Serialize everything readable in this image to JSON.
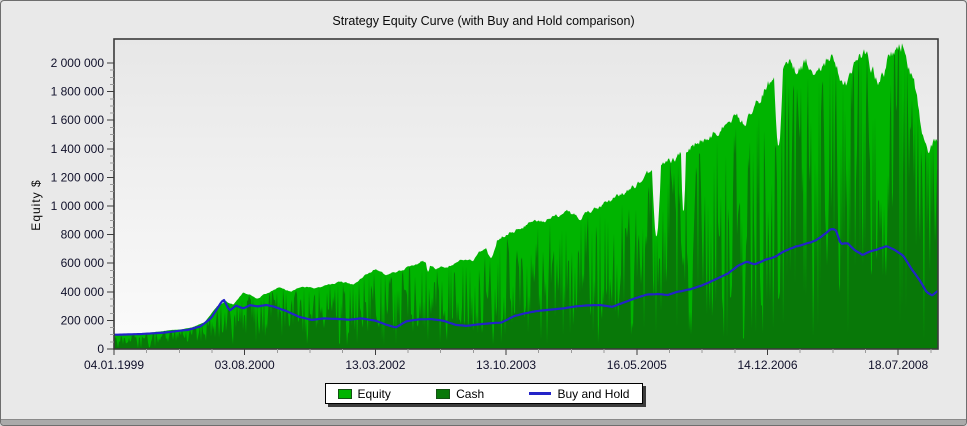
{
  "window": {
    "background_color": "#e9e9e9",
    "footer_bar_color": "#aaaaaa"
  },
  "chart_data": {
    "type": "area",
    "title": "Strategy Equity Curve (with Buy and Hold comparison)",
    "xlabel": "",
    "ylabel": "Equity $",
    "grid": false,
    "legend_position": "bottom-center",
    "plot_bg_gradient": [
      "#e7e7e7",
      "#fbfbfb"
    ],
    "plot_border_color": "#3b3b3b",
    "tick_label_color": "#10102a",
    "ylim": [
      0,
      2168000
    ],
    "y_ticks": {
      "values": [
        0,
        200000,
        400000,
        600000,
        800000,
        1000000,
        1200000,
        1400000,
        1600000,
        1800000,
        2000000
      ],
      "labels": [
        "0",
        "200 000",
        "400 000",
        "600 000",
        "800 000",
        "1 000 000",
        "1 200 000",
        "1 400 000",
        "1 600 000",
        "1 800 000",
        "2 000 000"
      ],
      "minor_step": 50000
    },
    "x_ticks": {
      "fracs": [
        0,
        0.1586,
        0.3172,
        0.4758,
        0.6345,
        0.7931,
        0.9517
      ],
      "labels": [
        "04.01.1999",
        "03.08.2000",
        "13.03.2002",
        "13.10.2003",
        "16.05.2005",
        "14.12.2006",
        "18.07.2008"
      ],
      "minors_between": 3
    },
    "noise_seed": 1337,
    "series": [
      {
        "name": "Equity",
        "type": "area",
        "color": "#00b400",
        "points": [
          [
            0.0,
            100000
          ],
          [
            0.02,
            106000
          ],
          [
            0.04,
            113000
          ],
          [
            0.06,
            126000
          ],
          [
            0.08,
            138000
          ],
          [
            0.095,
            152000
          ],
          [
            0.11,
            190000
          ],
          [
            0.125,
            295000
          ],
          [
            0.135,
            335000
          ],
          [
            0.145,
            308000
          ],
          [
            0.157,
            398000
          ],
          [
            0.17,
            368000
          ],
          [
            0.185,
            392000
          ],
          [
            0.2,
            428000
          ],
          [
            0.215,
            400000
          ],
          [
            0.23,
            438000
          ],
          [
            0.245,
            420000
          ],
          [
            0.26,
            448000
          ],
          [
            0.275,
            468000
          ],
          [
            0.29,
            450000
          ],
          [
            0.305,
            518000
          ],
          [
            0.317,
            558000
          ],
          [
            0.33,
            520000
          ],
          [
            0.345,
            538000
          ],
          [
            0.36,
            578000
          ],
          [
            0.375,
            618000
          ],
          [
            0.39,
            560000
          ],
          [
            0.405,
            580000
          ],
          [
            0.42,
            618000
          ],
          [
            0.435,
            648000
          ],
          [
            0.45,
            700000
          ],
          [
            0.465,
            758000
          ],
          [
            0.476,
            808000
          ],
          [
            0.49,
            838000
          ],
          [
            0.505,
            878000
          ],
          [
            0.52,
            898000
          ],
          [
            0.535,
            928000
          ],
          [
            0.55,
            958000
          ],
          [
            0.565,
            928000
          ],
          [
            0.58,
            978000
          ],
          [
            0.6,
            1028000
          ],
          [
            0.615,
            1078000
          ],
          [
            0.634,
            1148000
          ],
          [
            0.65,
            1228000
          ],
          [
            0.665,
            1268000
          ],
          [
            0.68,
            1328000
          ],
          [
            0.695,
            1398000
          ],
          [
            0.71,
            1448000
          ],
          [
            0.725,
            1518000
          ],
          [
            0.74,
            1578000
          ],
          [
            0.755,
            1628000
          ],
          [
            0.765,
            1548000
          ],
          [
            0.775,
            1648000
          ],
          [
            0.79,
            1818000
          ],
          [
            0.8,
            1898000
          ],
          [
            0.81,
            1958000
          ],
          [
            0.82,
            1998000
          ],
          [
            0.83,
            1928000
          ],
          [
            0.84,
            1988000
          ],
          [
            0.85,
            1898000
          ],
          [
            0.86,
            2018000
          ],
          [
            0.87,
            2058000
          ],
          [
            0.88,
            1948000
          ],
          [
            0.89,
            1848000
          ],
          [
            0.9,
            1998000
          ],
          [
            0.91,
            2078000
          ],
          [
            0.92,
            1948000
          ],
          [
            0.93,
            1868000
          ],
          [
            0.94,
            2018000
          ],
          [
            0.95,
            2098000
          ],
          [
            0.958,
            2148000
          ],
          [
            0.965,
            1998000
          ],
          [
            0.972,
            1848000
          ],
          [
            0.98,
            1548000
          ],
          [
            0.988,
            1418000
          ],
          [
            1.0,
            1458000
          ]
        ]
      },
      {
        "name": "Cash",
        "type": "area",
        "color": "#087808",
        "fraction_of_equity": [
          [
            0.0,
            0.72
          ],
          [
            0.08,
            0.74
          ],
          [
            0.14,
            0.62
          ],
          [
            0.2,
            0.6
          ],
          [
            0.28,
            0.62
          ],
          [
            0.36,
            0.6
          ],
          [
            0.44,
            0.56
          ],
          [
            0.52,
            0.58
          ],
          [
            0.6,
            0.55
          ],
          [
            0.68,
            0.54
          ],
          [
            0.76,
            0.55
          ],
          [
            0.84,
            0.58
          ],
          [
            0.92,
            0.62
          ],
          [
            1.0,
            0.78
          ]
        ]
      },
      {
        "name": "Buy and Hold",
        "type": "line",
        "color": "#2323c8",
        "points": [
          [
            0.0,
            100000
          ],
          [
            0.03,
            104000
          ],
          [
            0.06,
            114000
          ],
          [
            0.09,
            134000
          ],
          [
            0.105,
            158000
          ],
          [
            0.118,
            218000
          ],
          [
            0.128,
            308000
          ],
          [
            0.133,
            348000
          ],
          [
            0.14,
            268000
          ],
          [
            0.148,
            304000
          ],
          [
            0.157,
            284000
          ],
          [
            0.165,
            308000
          ],
          [
            0.175,
            298000
          ],
          [
            0.185,
            308000
          ],
          [
            0.195,
            294000
          ],
          [
            0.21,
            264000
          ],
          [
            0.225,
            224000
          ],
          [
            0.24,
            204000
          ],
          [
            0.255,
            214000
          ],
          [
            0.27,
            211000
          ],
          [
            0.285,
            204000
          ],
          [
            0.3,
            214000
          ],
          [
            0.317,
            199000
          ],
          [
            0.33,
            171000
          ],
          [
            0.342,
            151000
          ],
          [
            0.355,
            194000
          ],
          [
            0.37,
            207000
          ],
          [
            0.385,
            209000
          ],
          [
            0.4,
            197000
          ],
          [
            0.415,
            169000
          ],
          [
            0.428,
            162000
          ],
          [
            0.44,
            171000
          ],
          [
            0.455,
            179000
          ],
          [
            0.47,
            184000
          ],
          [
            0.485,
            229000
          ],
          [
            0.5,
            251000
          ],
          [
            0.515,
            267000
          ],
          [
            0.53,
            277000
          ],
          [
            0.545,
            284000
          ],
          [
            0.56,
            297000
          ],
          [
            0.575,
            304000
          ],
          [
            0.59,
            307000
          ],
          [
            0.605,
            294000
          ],
          [
            0.62,
            329000
          ],
          [
            0.634,
            359000
          ],
          [
            0.648,
            381000
          ],
          [
            0.66,
            384000
          ],
          [
            0.672,
            377000
          ],
          [
            0.685,
            401000
          ],
          [
            0.7,
            419000
          ],
          [
            0.715,
            447000
          ],
          [
            0.73,
            489000
          ],
          [
            0.745,
            529000
          ],
          [
            0.758,
            584000
          ],
          [
            0.768,
            609000
          ],
          [
            0.778,
            589000
          ],
          [
            0.79,
            624000
          ],
          [
            0.802,
            644000
          ],
          [
            0.815,
            689000
          ],
          [
            0.828,
            717000
          ],
          [
            0.84,
            734000
          ],
          [
            0.852,
            759000
          ],
          [
            0.862,
            799000
          ],
          [
            0.87,
            839000
          ],
          [
            0.876,
            829000
          ],
          [
            0.882,
            734000
          ],
          [
            0.89,
            744000
          ],
          [
            0.898,
            699000
          ],
          [
            0.908,
            659000
          ],
          [
            0.918,
            684000
          ],
          [
            0.928,
            699000
          ],
          [
            0.938,
            721000
          ],
          [
            0.948,
            689000
          ],
          [
            0.958,
            649000
          ],
          [
            0.968,
            559000
          ],
          [
            0.978,
            479000
          ],
          [
            0.986,
            399000
          ],
          [
            0.993,
            374000
          ],
          [
            1.0,
            409000
          ]
        ]
      }
    ]
  },
  "legend": {
    "items": [
      {
        "label": "Equity",
        "color": "#00b400",
        "shape": "square"
      },
      {
        "label": "Cash",
        "color": "#087808",
        "shape": "square"
      },
      {
        "label": "Buy and Hold",
        "color": "#2323c8",
        "shape": "line"
      }
    ]
  }
}
